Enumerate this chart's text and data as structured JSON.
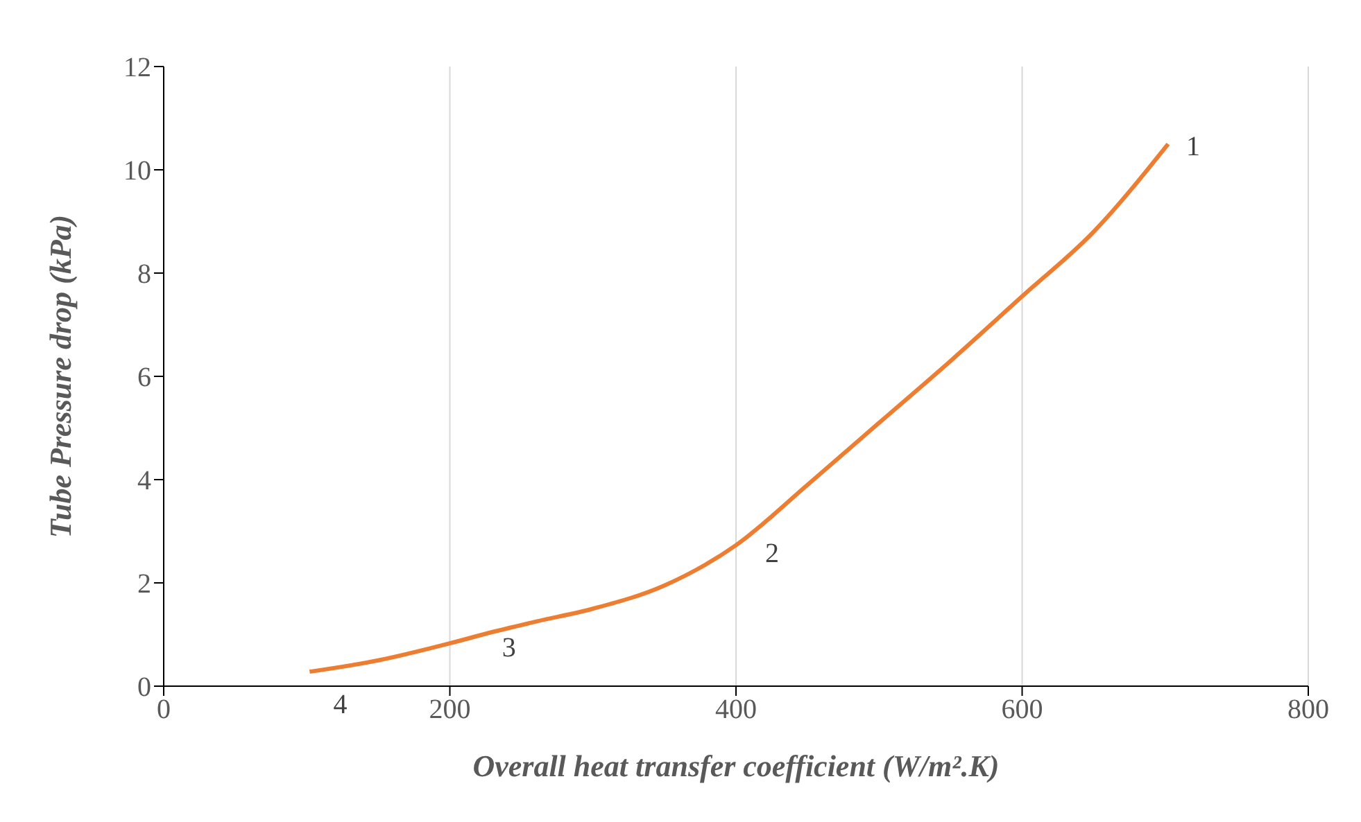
{
  "chart_data": {
    "type": "line",
    "xlabel": "Overall heat transfer coefficient (W/m².K)",
    "ylabel": "Tube Pressure drop (kPa)",
    "x": [
      102,
      150,
      200,
      230,
      260,
      300,
      350,
      400,
      450,
      500,
      550,
      600,
      650,
      702
    ],
    "series": [
      {
        "color": "#ed7d31",
        "values": [
          0.28,
          0.5,
          0.83,
          1.05,
          1.25,
          1.5,
          1.95,
          2.73,
          3.9,
          5.1,
          6.3,
          7.55,
          8.8,
          10.5
        ]
      }
    ],
    "xlim": [
      0,
      800
    ],
    "xticks": [
      0,
      200,
      400,
      600,
      800
    ],
    "ylim": [
      0,
      12
    ],
    "yticks": [
      0,
      2,
      4,
      6,
      8,
      10,
      12
    ],
    "grid": "x",
    "marker": "none",
    "line_style": "solid",
    "annotations": [
      {
        "text": "1",
        "x": 702,
        "y": 10.5
      },
      {
        "text": "2",
        "x": 400,
        "y": 2.73
      },
      {
        "text": "3",
        "x": 220,
        "y": 0.95
      },
      {
        "text": "4",
        "x": 102,
        "y": 0.28
      }
    ]
  }
}
